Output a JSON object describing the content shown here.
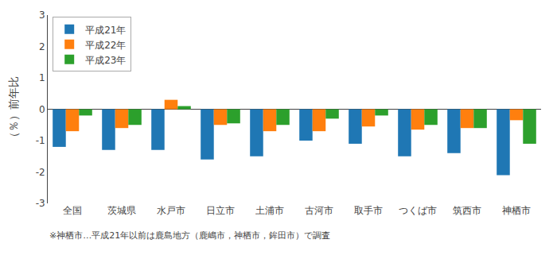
{
  "chart_data": {
    "type": "bar",
    "categories": [
      "全国",
      "茨城県",
      "水戸市",
      "日立市",
      "土浦市",
      "古河市",
      "取手市",
      "つくば市",
      "筑西市",
      "神栖市"
    ],
    "series": [
      {
        "name": "平成21年",
        "values": [
          -1.2,
          -1.3,
          -1.3,
          -1.6,
          -1.5,
          -1.0,
          -1.1,
          -1.5,
          -1.4,
          -2.1
        ]
      },
      {
        "name": "平成22年",
        "values": [
          -0.7,
          -0.6,
          0.3,
          -0.5,
          -0.7,
          -0.7,
          -0.55,
          -0.65,
          -0.6,
          -0.35
        ]
      },
      {
        "name": "平成23年",
        "values": [
          -0.2,
          -0.5,
          0.1,
          -0.45,
          -0.5,
          -0.3,
          -0.2,
          -0.5,
          -0.6,
          -1.1
        ]
      }
    ],
    "ylabel": "（％）前年比",
    "ylim": [
      -3.0,
      3.0
    ],
    "yticks": [
      -3,
      -2,
      -1,
      0,
      1,
      2,
      3
    ],
    "annotations": [
      "※神栖市…平成21年以前は鹿島地方（鹿嶋市，神栖市，鉾田市）で調査"
    ],
    "legend": "upper left",
    "grid": false
  }
}
